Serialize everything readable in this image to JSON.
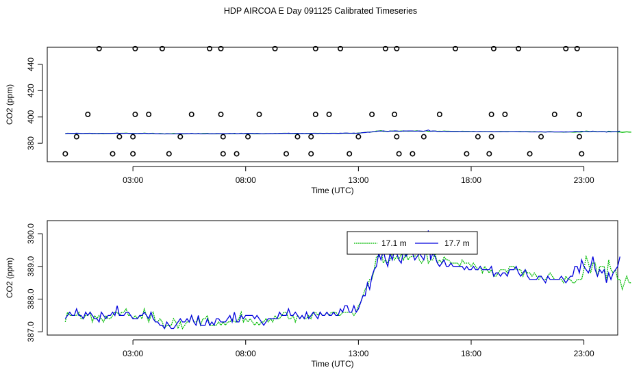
{
  "title": "HDP AIRCOA E  Day 091125  Calibrated Timeseries",
  "chart_data": [
    {
      "type": "scatter",
      "xlabel": "Time (UTC)",
      "ylabel": "CO2 (ppm)",
      "xlim": [
        -0.8,
        24.5
      ],
      "ylim": [
        366,
        453
      ],
      "x_ticks": [
        3,
        8,
        13,
        18,
        23
      ],
      "x_tick_labels": [
        "03:00",
        "08:00",
        "13:00",
        "18:00",
        "23:00"
      ],
      "y_ticks": [
        380,
        400,
        420,
        440
      ],
      "grid": false,
      "series": [
        {
          "name": "",
          "kind": "calibration-points",
          "color": "#000000",
          "points": [
            [
              0.0,
              372
            ],
            [
              0.5,
              385
            ],
            [
              1.0,
              402
            ],
            [
              1.5,
              452
            ],
            [
              2.1,
              372
            ],
            [
              2.4,
              385
            ],
            [
              3.0,
              385
            ],
            [
              3.1,
              402
            ],
            [
              3.1,
              452
            ],
            [
              3.0,
              372
            ],
            [
              3.7,
              402
            ],
            [
              4.3,
              452
            ],
            [
              4.6,
              372
            ],
            [
              5.1,
              385
            ],
            [
              5.6,
              402
            ],
            [
              6.4,
              452
            ],
            [
              6.9,
              402
            ],
            [
              6.9,
              452
            ],
            [
              7.0,
              385
            ],
            [
              7.0,
              372
            ],
            [
              7.6,
              372
            ],
            [
              8.1,
              385
            ],
            [
              8.6,
              402
            ],
            [
              9.3,
              452
            ],
            [
              9.8,
              372
            ],
            [
              10.3,
              385
            ],
            [
              10.9,
              372
            ],
            [
              10.9,
              385
            ],
            [
              11.1,
              402
            ],
            [
              11.1,
              452
            ],
            [
              11.7,
              402
            ],
            [
              12.2,
              452
            ],
            [
              12.6,
              372
            ],
            [
              13.0,
              385
            ],
            [
              13.6,
              402
            ],
            [
              14.2,
              452
            ],
            [
              14.6,
              402
            ],
            [
              14.7,
              452
            ],
            [
              14.7,
              385
            ],
            [
              14.8,
              372
            ],
            [
              15.4,
              372
            ],
            [
              15.9,
              385
            ],
            [
              16.6,
              402
            ],
            [
              17.3,
              452
            ],
            [
              17.8,
              372
            ],
            [
              18.3,
              385
            ],
            [
              18.8,
              372
            ],
            [
              18.9,
              385
            ],
            [
              18.9,
              402
            ],
            [
              19.0,
              452
            ],
            [
              19.5,
              402
            ],
            [
              20.1,
              452
            ],
            [
              20.6,
              372
            ],
            [
              21.1,
              385
            ],
            [
              21.7,
              402
            ],
            [
              22.2,
              452
            ],
            [
              22.7,
              452
            ],
            [
              22.8,
              402
            ],
            [
              22.8,
              385
            ],
            [
              22.9,
              372
            ]
          ]
        },
        {
          "name": "17.1 m",
          "color": "#00bb00",
          "x_start": 0.0,
          "x_step": 0.1,
          "y": [
            387.3,
            387.6,
            387.5,
            387.5,
            387.5,
            387.5,
            387.6,
            387.4,
            387.4,
            387.5,
            387.5,
            387.6,
            387.3,
            387.5,
            387.4,
            387.5,
            387.4,
            387.3,
            387.5,
            387.4,
            387.4,
            387.5,
            387.6,
            387.6,
            387.5,
            387.6,
            387.6,
            387.7,
            387.5,
            387.5,
            387.4,
            387.5,
            387.4,
            387.5,
            387.4,
            387.7,
            387.5,
            387.3,
            387.5,
            387.6,
            387.3,
            387.3,
            387.4,
            387.3,
            387.1,
            387.2,
            387.2,
            387.2,
            387.4,
            387.3,
            387.1,
            387.3,
            387.1,
            387.2,
            387.3,
            387.3,
            387.5,
            387.3,
            387.3,
            387.4,
            387.2,
            387.4,
            387.4,
            387.5,
            387.2,
            387.2,
            387.2,
            387.2,
            387.3,
            387.2,
            387.3,
            387.2,
            387.3,
            387.3,
            387.4,
            387.3,
            387.3,
            387.4,
            387.6,
            387.3,
            387.4,
            387.3,
            387.4,
            387.3,
            387.2,
            387.3,
            387.2,
            387.3,
            387.3,
            387.4,
            387.3,
            387.4,
            387.3,
            387.5,
            387.4,
            387.4,
            387.5,
            387.6,
            387.6,
            387.4,
            387.4,
            387.5,
            387.3,
            387.5,
            387.4,
            387.5,
            387.4,
            387.4,
            387.5,
            387.4,
            387.6,
            387.6,
            387.5,
            387.6,
            387.5,
            387.5,
            387.6,
            387.5,
            387.6,
            387.6,
            387.6,
            387.5,
            387.5,
            387.6,
            387.6,
            387.6,
            387.6,
            387.6,
            387.5,
            387.6,
            387.8,
            387.9,
            388.1,
            388.3,
            388.4,
            388.6,
            388.6,
            388.9,
            389.3,
            389.3,
            389.6,
            389.1,
            389.2,
            389.1,
            389.2,
            389.4,
            389.2,
            389.3,
            389.2,
            389.4,
            389.2,
            389.4,
            389.2,
            389.3,
            389.3,
            389.3,
            389.5,
            389.2,
            389.1,
            389.2,
            389.5,
            389.1,
            389.2,
            389.2,
            389.4,
            389.1,
            389.2,
            389.1,
            389.3,
            389.2,
            389.2,
            389.1,
            389.1,
            389.1,
            389.1,
            389.0,
            389.2,
            389.1,
            389.1,
            389.1,
            389.0,
            389.1,
            389.0,
            388.9,
            389.0,
            388.8,
            389.0,
            388.9,
            388.8,
            388.9,
            388.7,
            388.7,
            388.8,
            388.9,
            388.9,
            388.9,
            388.8,
            389.0,
            389.0,
            389.0,
            388.9,
            388.9,
            388.9,
            388.7,
            388.9,
            388.8,
            388.8,
            388.7,
            388.8,
            388.7,
            388.6,
            388.7,
            388.6,
            388.6,
            388.7,
            388.8,
            388.7,
            388.6,
            388.6,
            388.6,
            388.6,
            388.5,
            388.7,
            388.6,
            388.6,
            388.5,
            388.5,
            388.6,
            388.6,
            388.6,
            388.9,
            389.3,
            389.1,
            388.8,
            389.1,
            389.1,
            388.7,
            389.0,
            389.0,
            389.0,
            388.6,
            389.2,
            388.9,
            388.8,
            388.9,
            388.6,
            388.6,
            388.3,
            388.5,
            388.7,
            388.5,
            388.5
          ]
        },
        {
          "name": "17.7 m",
          "color": "#0000dd",
          "x_start": 0.0,
          "x_step": 0.1,
          "y": [
            387.4,
            387.5,
            387.6,
            387.5,
            387.5,
            387.7,
            387.5,
            387.5,
            387.4,
            387.6,
            387.5,
            387.6,
            387.5,
            387.4,
            387.4,
            387.3,
            387.6,
            387.5,
            387.4,
            387.5,
            387.5,
            387.6,
            387.5,
            387.8,
            387.5,
            387.5,
            387.5,
            387.6,
            387.6,
            387.5,
            387.4,
            387.4,
            387.4,
            387.5,
            387.5,
            387.6,
            387.5,
            387.4,
            387.6,
            387.4,
            387.3,
            387.3,
            387.2,
            387.2,
            387.1,
            387.3,
            387.2,
            387.1,
            387.1,
            387.2,
            387.3,
            387.4,
            387.3,
            387.3,
            387.4,
            387.3,
            387.5,
            387.3,
            387.2,
            387.5,
            387.2,
            387.2,
            387.2,
            387.4,
            387.2,
            387.3,
            387.2,
            387.4,
            387.4,
            387.3,
            387.3,
            387.3,
            387.4,
            387.5,
            387.3,
            387.6,
            387.3,
            387.3,
            387.5,
            387.4,
            387.5,
            387.5,
            387.5,
            387.5,
            387.4,
            387.5,
            387.4,
            387.3,
            387.2,
            387.3,
            387.4,
            387.4,
            387.4,
            387.4,
            387.4,
            387.6,
            387.5,
            387.5,
            387.5,
            387.7,
            387.5,
            387.5,
            387.6,
            387.5,
            387.4,
            387.5,
            387.4,
            387.6,
            387.4,
            387.5,
            387.6,
            387.5,
            387.4,
            387.6,
            387.5,
            387.5,
            387.6,
            387.5,
            387.5,
            387.6,
            387.5,
            387.5,
            387.7,
            387.6,
            387.8,
            387.8,
            387.6,
            387.6,
            387.8,
            387.6,
            387.7,
            387.9,
            388.1,
            388.1,
            388.5,
            388.3,
            388.7,
            388.9,
            389.0,
            389.4,
            389.2,
            389.5,
            389.2,
            389.0,
            389.4,
            389.2,
            389.5,
            389.4,
            389.2,
            389.1,
            389.5,
            389.3,
            389.4,
            389.4,
            389.4,
            389.2,
            389.3,
            389.4,
            389.3,
            389.2,
            389.5,
            390.1,
            389.2,
            389.4,
            389.3,
            389.1,
            389.0,
            389.1,
            389.2,
            389.0,
            389.0,
            389.1,
            389.0,
            389.0,
            389.0,
            389.0,
            389.0,
            388.9,
            389.0,
            388.9,
            388.9,
            389.0,
            388.9,
            388.9,
            389.0,
            388.9,
            388.9,
            388.9,
            388.9,
            389.0,
            388.7,
            388.8,
            388.8,
            388.7,
            388.8,
            388.8,
            388.7,
            388.9,
            388.9,
            388.9,
            389.0,
            388.8,
            388.7,
            388.8,
            388.9,
            388.7,
            388.6,
            388.6,
            388.6,
            388.6,
            388.7,
            388.7,
            388.6,
            388.5,
            388.7,
            388.6,
            388.6,
            388.6,
            388.6,
            388.6,
            388.7,
            388.6,
            388.5,
            388.6,
            388.7,
            388.7,
            389.0,
            389.0,
            388.8,
            389.2,
            389.0,
            388.9,
            388.8,
            389.0,
            389.3,
            388.9,
            388.7,
            388.9,
            388.8,
            388.9,
            388.5,
            388.8,
            388.6,
            388.8,
            388.9,
            389.0,
            389.3
          ]
        }
      ]
    },
    {
      "type": "line",
      "xlabel": "Time (UTC)",
      "ylabel": "CO2 (ppm)",
      "xlim": [
        -0.8,
        24.5
      ],
      "ylim": [
        386.9,
        390.4
      ],
      "x_ticks": [
        3,
        8,
        13,
        18,
        23
      ],
      "x_tick_labels": [
        "03:00",
        "08:00",
        "13:00",
        "18:00",
        "23:00"
      ],
      "y_ticks": [
        387,
        388,
        389,
        390
      ],
      "y_tick_labels": [
        "387.0",
        "388.0",
        "389.0",
        "390.0"
      ],
      "grid": false,
      "legend": {
        "placement": "top-center",
        "entries": [
          {
            "label": "17.1 m",
            "color": "#00bb00",
            "style": "dotted"
          },
          {
            "label": "17.7 m",
            "color": "#0000dd",
            "style": "solid"
          }
        ]
      },
      "series_ref": "same series as the upper panel's 17.1 m and 17.7 m lines"
    }
  ]
}
